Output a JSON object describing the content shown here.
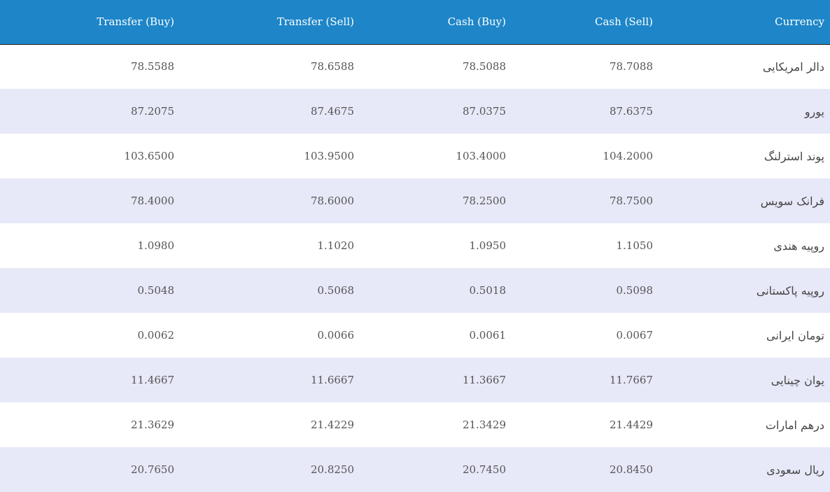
{
  "table": {
    "headers": {
      "transfer_buy": "Transfer (Buy)",
      "transfer_sell": "Transfer (Sell)",
      "cash_buy": "Cash (Buy)",
      "cash_sell": "Cash (Sell)",
      "currency": "Currency"
    },
    "rows": [
      {
        "transfer_buy": "78.5588",
        "transfer_sell": "78.6588",
        "cash_buy": "78.5088",
        "cash_sell": "78.7088",
        "currency": "دالر امریکایی"
      },
      {
        "transfer_buy": "87.2075",
        "transfer_sell": "87.4675",
        "cash_buy": "87.0375",
        "cash_sell": "87.6375",
        "currency": "یورو"
      },
      {
        "transfer_buy": "103.6500",
        "transfer_sell": "103.9500",
        "cash_buy": "103.4000",
        "cash_sell": "104.2000",
        "currency": "پوند استرلنگ"
      },
      {
        "transfer_buy": "78.4000",
        "transfer_sell": "78.6000",
        "cash_buy": "78.2500",
        "cash_sell": "78.7500",
        "currency": "فرانک سویس"
      },
      {
        "transfer_buy": "1.0980",
        "transfer_sell": "1.1020",
        "cash_buy": "1.0950",
        "cash_sell": "1.1050",
        "currency": "روپیه هندی"
      },
      {
        "transfer_buy": "0.5048",
        "transfer_sell": "0.5068",
        "cash_buy": "0.5018",
        "cash_sell": "0.5098",
        "currency": "روپیه پاکستانی"
      },
      {
        "transfer_buy": "0.0062",
        "transfer_sell": "0.0066",
        "cash_buy": "0.0061",
        "cash_sell": "0.0067",
        "currency": "تومان ایرانی"
      },
      {
        "transfer_buy": "11.4667",
        "transfer_sell": "11.6667",
        "cash_buy": "11.3667",
        "cash_sell": "11.7667",
        "currency": "یوان چینایی"
      },
      {
        "transfer_buy": "21.3629",
        "transfer_sell": "21.4229",
        "cash_buy": "21.3429",
        "cash_sell": "21.4429",
        "currency": "درهم امارات"
      },
      {
        "transfer_buy": "20.7650",
        "transfer_sell": "20.8250",
        "cash_buy": "20.7450",
        "cash_sell": "20.8450",
        "currency": "ریال سعودی"
      }
    ]
  },
  "colors": {
    "header_bg": "#1e86c8",
    "header_text": "#ffffff",
    "row_alt_bg": "#e7e8f8",
    "row_bg": "#ffffff",
    "cell_text": "#555555"
  }
}
